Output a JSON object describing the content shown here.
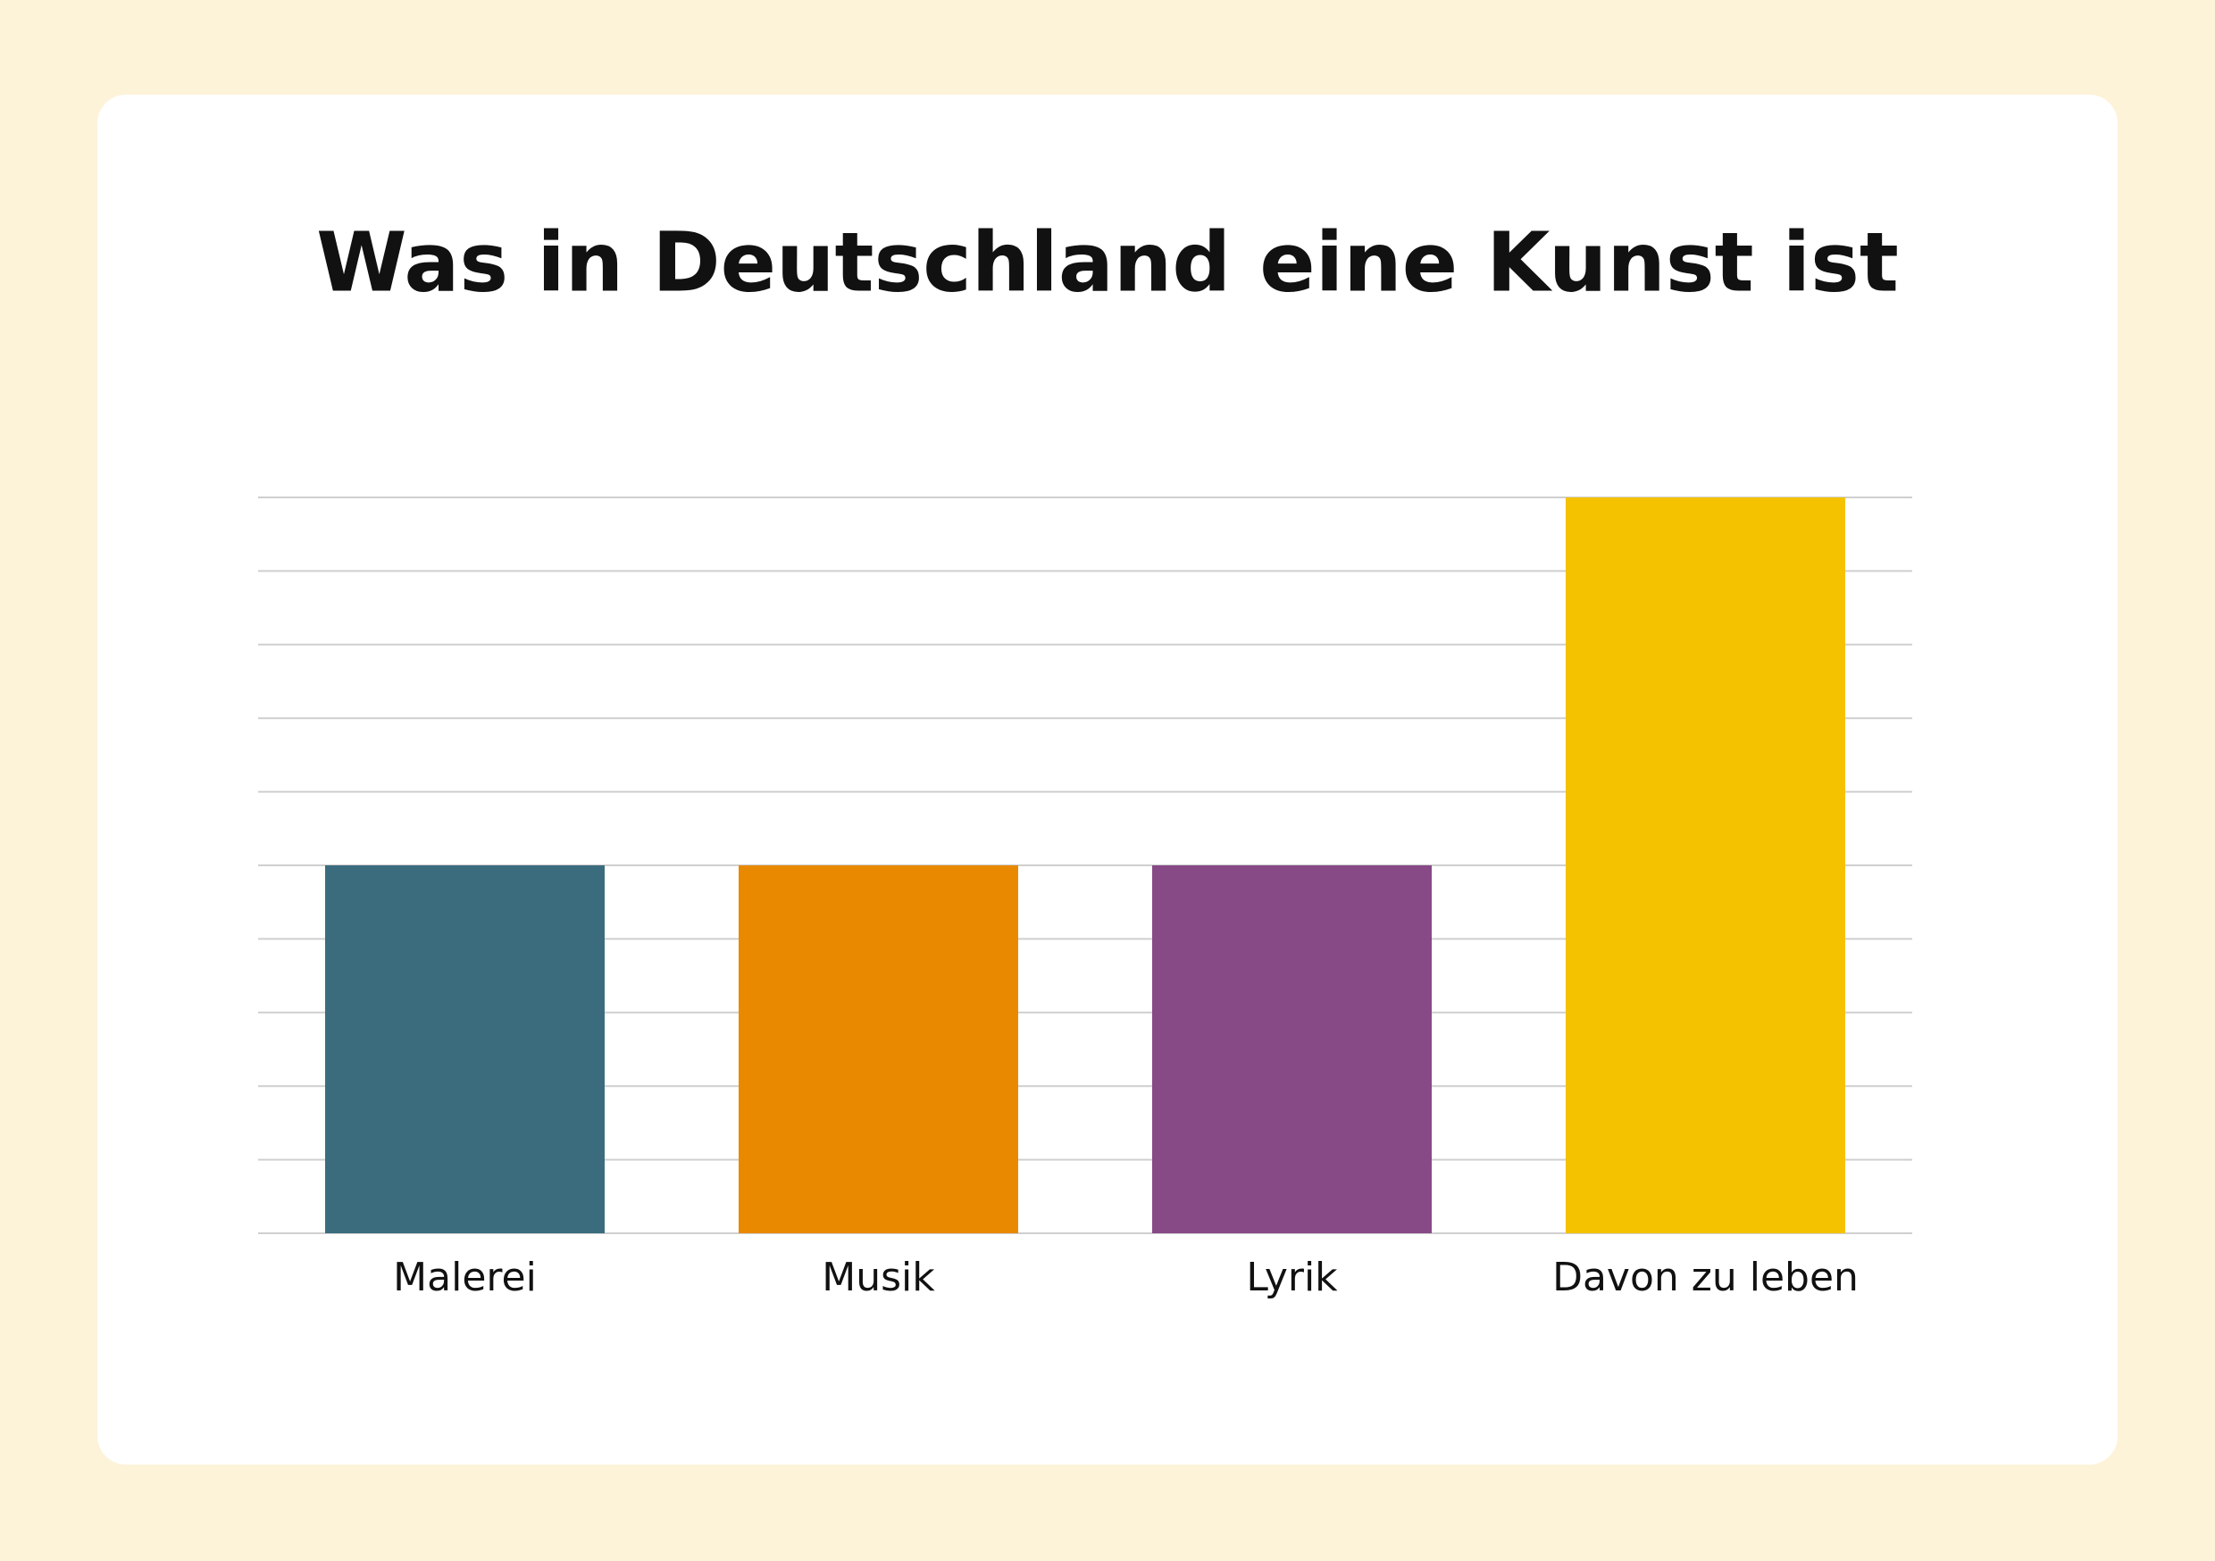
{
  "chart_data": {
    "type": "bar",
    "title": "Was in Deutschland eine Kunst ist",
    "categories": [
      "Malerei",
      "Musik",
      "Lyrik",
      "Davon zu leben"
    ],
    "values": [
      5,
      5,
      5,
      10
    ],
    "colors": [
      "#3b6c7e",
      "#e88900",
      "#874a86",
      "#f5c200"
    ],
    "ylim": [
      0,
      10
    ],
    "yticks": [
      0,
      1,
      2,
      3,
      4,
      5,
      6,
      7,
      8,
      9,
      10
    ],
    "grid": true,
    "show_ytick_labels": false
  }
}
